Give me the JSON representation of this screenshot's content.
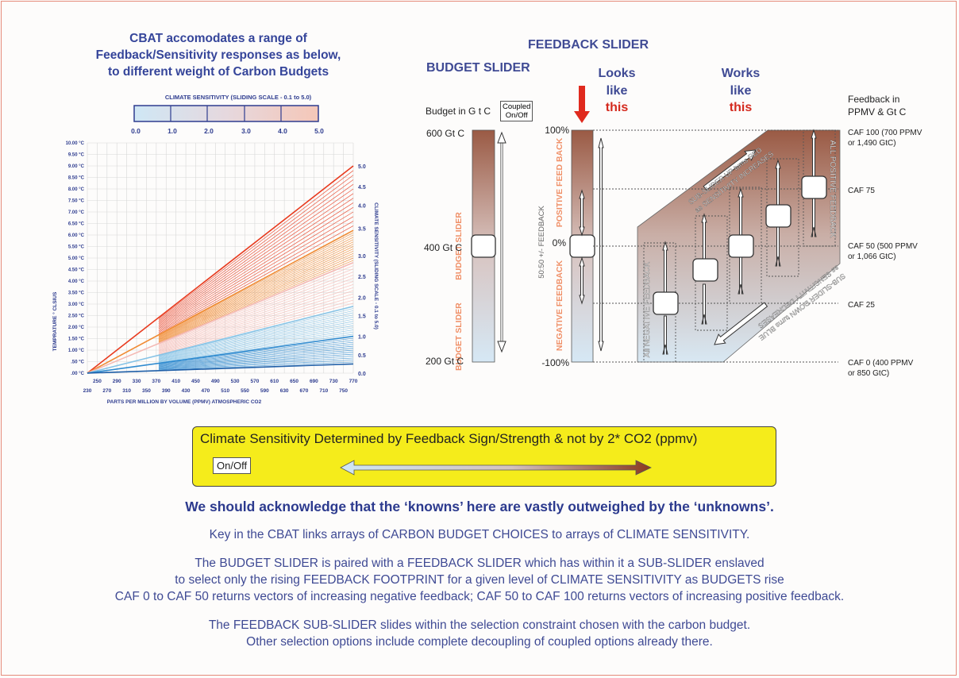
{
  "left_title": [
    "CBAT accomodates a range of",
    "Feedback/Sensitivity responses as below,",
    "to different weight of Carbon Budgets"
  ],
  "sensitivity_scale": {
    "title": "CLIMATE SENSITIVITY (SLIDING SCALE - 0.1 to 5.0)",
    "ticks": [
      "0.0",
      "1.0",
      "2.0",
      "3.0",
      "4.0",
      "5.0"
    ]
  },
  "chart_data": {
    "type": "line",
    "xlabel": "PARTS PER MILLION BY VOLUME (PPMV) ATMOSPHERIC CO2",
    "ylabel": "TEMPRATURE ° CLSIUS",
    "y2label": "CLIMATE SENSITIVITY (SLIDING SCALE - 0.1 to 5.0)",
    "x_ticks_top": [
      "250",
      "290",
      "330",
      "370",
      "410",
      "450",
      "490",
      "530",
      "570",
      "610",
      "650",
      "690",
      "730",
      "770"
    ],
    "x_ticks_bottom": [
      "230",
      "270",
      "310",
      "350",
      "390",
      "430",
      "470",
      "510",
      "550",
      "590",
      "630",
      "670",
      "710",
      "750"
    ],
    "y_ticks": [
      "10.00 °C",
      "9.50 °C",
      "9.00 °C",
      "8.50 °C",
      "8.00 °C",
      "7.50 °C",
      "7.00 °C",
      "6.50 °C",
      "6.00 °C",
      "5.50 °C",
      "5.00 °C",
      "4.50 °C",
      "4.00 °C",
      "3.50 °C",
      "3.00 °C",
      "2.50 °C",
      "2.00 °C",
      "1.50 °C",
      "1.00 °C",
      ".50 °C",
      ".00 °C"
    ],
    "y2_ticks": [
      "5.0",
      "4.5",
      "4.0",
      "3.5",
      "3.0",
      "2.5",
      "2.0",
      "1.5",
      "1.0",
      "0.5",
      "0.0"
    ],
    "xlim": [
      230,
      770
    ],
    "ylim": [
      0,
      10
    ],
    "origin_ppmv": 230,
    "end_ppmv": 770,
    "end_values": [
      9.0,
      6.2,
      4.8,
      2.9,
      1.6,
      0.4
    ],
    "series_colors": [
      "#e83a1e",
      "#f08a32",
      "#f4b9b4",
      "#86c3e6",
      "#2f8bd0",
      "#1f5fa8"
    ]
  },
  "budget": {
    "header": "BUDGET SLIDER",
    "label": "Budget in G t C",
    "coupled": [
      "Coupled",
      "On/Off"
    ],
    "top": "600 Gt C",
    "mid": "400 Gt C",
    "bottom": "200 Gt C",
    "vertical_text": "BUDGET SLIDER"
  },
  "feedback": {
    "header": "FEEDBACK SLIDER",
    "looks": [
      "Looks",
      "like",
      "this"
    ],
    "works": [
      "Works",
      "like",
      "this"
    ],
    "p100": "100%",
    "p0": "0%",
    "m100": "-100%",
    "vertical_pos": "POSITIVE FEED BACK",
    "vertical_neg": "NEGATIVE FEEDBACK",
    "vertical_5050": "50:50 +/- FEEDBACK",
    "all_positive": "ALL POSITIVE FEEDBACK",
    "all_negative": "All NEGATIVE FEEDBACK",
    "sub_up": [
      "SUB-SLIDER UP turns RED",
      "as SENSITIVITY INCREASES"
    ],
    "sub_down": [
      "SUB-SLIDER DOWN turns BLUE",
      "as SENSITIVITY DECREASES"
    ],
    "right_title": [
      "Feedback in",
      "PPMV & Gt C"
    ],
    "caf100": [
      "CAF 100 (700 PPMV",
      "or 1,490 GtC)"
    ],
    "caf75": "CAF 75",
    "caf50": [
      "CAF 50 (500 PPMV",
      "or 1,066 GtC)"
    ],
    "caf25": "CAF 25",
    "caf0": [
      "CAF 0 (400 PPMV",
      "or 850 GtC)"
    ]
  },
  "yellow_box": {
    "title": "Climate Sensitivity Determined by Feedback Sign/Strength & not by 2* CO2 (ppmv)",
    "toggle": "On/Off"
  },
  "statement": "We should acknowledge that the ‘knowns’ here are vastly outweighed by the ‘unknowns’.",
  "paragraphs": [
    [
      "Key in the CBAT links arrays of CARBON BUDGET CHOICES to arrays of CLIMATE SENSITIVITY."
    ],
    [
      "The BUDGET SLIDER is paired with a FEEDBACK SLIDER which has within it a SUB-SLIDER enslaved",
      "to select only the rising FEEDBACK FOOTPRINT for a given level of CLIMATE SENSITIVITY as BUDGETS rise",
      "CAF 0 to CAF 50 returns vectors of increasing negative feedback; CAF 50 to CAF 100 returns vectors of increasing positive feedback."
    ],
    [
      "The FEEDBACK SUB-SLIDER slides within the selection constraint chosen with the carbon budget.",
      "Other selection options include complete decoupling of coupled options already there."
    ]
  ],
  "colors": {
    "navy": "#35459a",
    "red": "#d42a1e",
    "brown": "#9a5a44",
    "yellow": "#f5ec1b"
  }
}
